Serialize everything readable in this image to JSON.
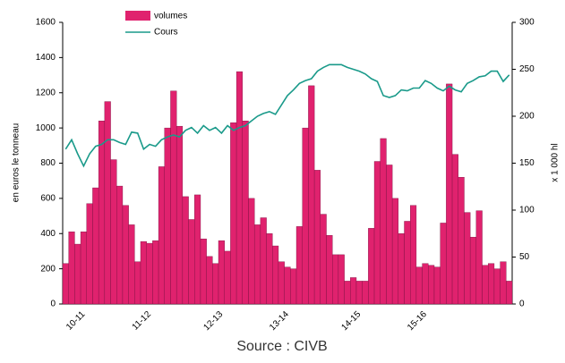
{
  "chart_data": {
    "type": "bar-line",
    "y_label": "en euros le tonneau",
    "y2_label": "x 1 000 hl",
    "source": "Source : CIVB",
    "categories": [
      null,
      null,
      null,
      "10-11",
      null,
      null,
      null,
      null,
      null,
      null,
      null,
      null,
      null,
      null,
      "11-12",
      null,
      null,
      null,
      null,
      null,
      null,
      null,
      null,
      null,
      null,
      null,
      "12-13",
      null,
      null,
      null,
      null,
      null,
      null,
      null,
      null,
      null,
      null,
      "13-14",
      null,
      null,
      null,
      null,
      null,
      null,
      null,
      null,
      null,
      null,
      null,
      "14-15",
      null,
      null,
      null,
      null,
      null,
      null,
      null,
      null,
      null,
      null,
      "15-16",
      null,
      null,
      null,
      null,
      null,
      null,
      null,
      null,
      null,
      null,
      null,
      null,
      null,
      null
    ],
    "series": [
      {
        "name": "volumes",
        "color": "#e0226e",
        "values": [
          230,
          410,
          340,
          410,
          570,
          660,
          1040,
          1150,
          820,
          670,
          560,
          450,
          240,
          355,
          345,
          360,
          780,
          1000,
          1210,
          1010,
          610,
          480,
          620,
          370,
          270,
          230,
          360,
          300,
          1030,
          1320,
          1040,
          600,
          450,
          490,
          400,
          330,
          240,
          210,
          200,
          440,
          1000,
          1240,
          760,
          510,
          390,
          280,
          280,
          130,
          150,
          130,
          130,
          430,
          810,
          940,
          790,
          600,
          400,
          470,
          560,
          210,
          230,
          220,
          210,
          460,
          1250,
          850,
          720,
          520,
          380,
          530,
          220,
          230,
          200,
          240,
          130
        ]
      },
      {
        "name": "Cours",
        "color": "#1a9a8a",
        "axis": "y2",
        "values": [
          165,
          175,
          160,
          147,
          160,
          168,
          170,
          175,
          175,
          172,
          170,
          183,
          182,
          165,
          170,
          168,
          175,
          178,
          180,
          178,
          185,
          188,
          182,
          190,
          185,
          188,
          182,
          190,
          185,
          188,
          190,
          195,
          200,
          203,
          205,
          202,
          212,
          222,
          228,
          235,
          238,
          240,
          248,
          252,
          255,
          255,
          255,
          252,
          250,
          248,
          245,
          240,
          237,
          222,
          220,
          222,
          228,
          227,
          230,
          230,
          238,
          235,
          230,
          227,
          232,
          228,
          226,
          235,
          238,
          242,
          243,
          248,
          248,
          237,
          244
        ]
      }
    ],
    "ylim": [
      0,
      1600
    ],
    "yticks": [
      0,
      200,
      400,
      600,
      800,
      1000,
      1200,
      1400,
      1600
    ],
    "y2lim": [
      0,
      300
    ],
    "y2ticks": [
      0,
      50,
      100,
      150,
      200,
      250,
      300
    ]
  }
}
